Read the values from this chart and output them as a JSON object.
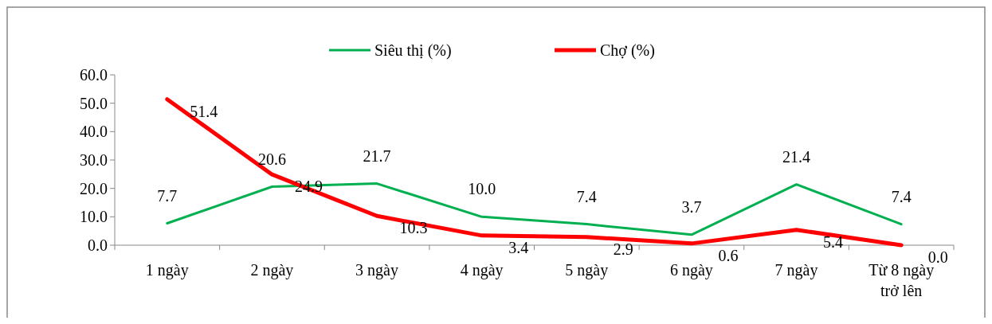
{
  "chart_data": {
    "type": "line",
    "categories": [
      "1 ngày",
      "2 ngày",
      "3 ngày",
      "4 ngày",
      "5 ngày",
      "6 ngày",
      "7 ngày",
      "Từ 8 ngày trở lên"
    ],
    "series": [
      {
        "name": "Siêu thị (%)",
        "color": "#00b050",
        "values": [
          7.7,
          20.6,
          21.7,
          10.0,
          7.4,
          3.7,
          21.4,
          7.4
        ],
        "value_labels": [
          "7.7",
          "20.6",
          "21.7",
          "10.0",
          "7.4",
          "3.7",
          "21.4",
          "7.4"
        ]
      },
      {
        "name": "Chợ (%)",
        "color": "#ff0000",
        "values": [
          51.4,
          24.9,
          10.3,
          3.4,
          2.9,
          0.6,
          5.4,
          0.0
        ],
        "value_labels": [
          "51.4",
          "24.9",
          "10.3",
          "3.4",
          "2.9",
          "0.6",
          "5.4",
          "0.0"
        ]
      }
    ],
    "ylim": [
      0,
      60
    ],
    "yticks": [
      {
        "value": 0,
        "label": "0.0"
      },
      {
        "value": 10,
        "label": "10.0"
      },
      {
        "value": 20,
        "label": "20.0"
      },
      {
        "value": 30,
        "label": "30.0"
      },
      {
        "value": 40,
        "label": "40.0"
      },
      {
        "value": 50,
        "label": "50.0"
      },
      {
        "value": 60,
        "label": "60.0"
      }
    ],
    "legend": "top",
    "grid": false,
    "line_style": "solid"
  }
}
